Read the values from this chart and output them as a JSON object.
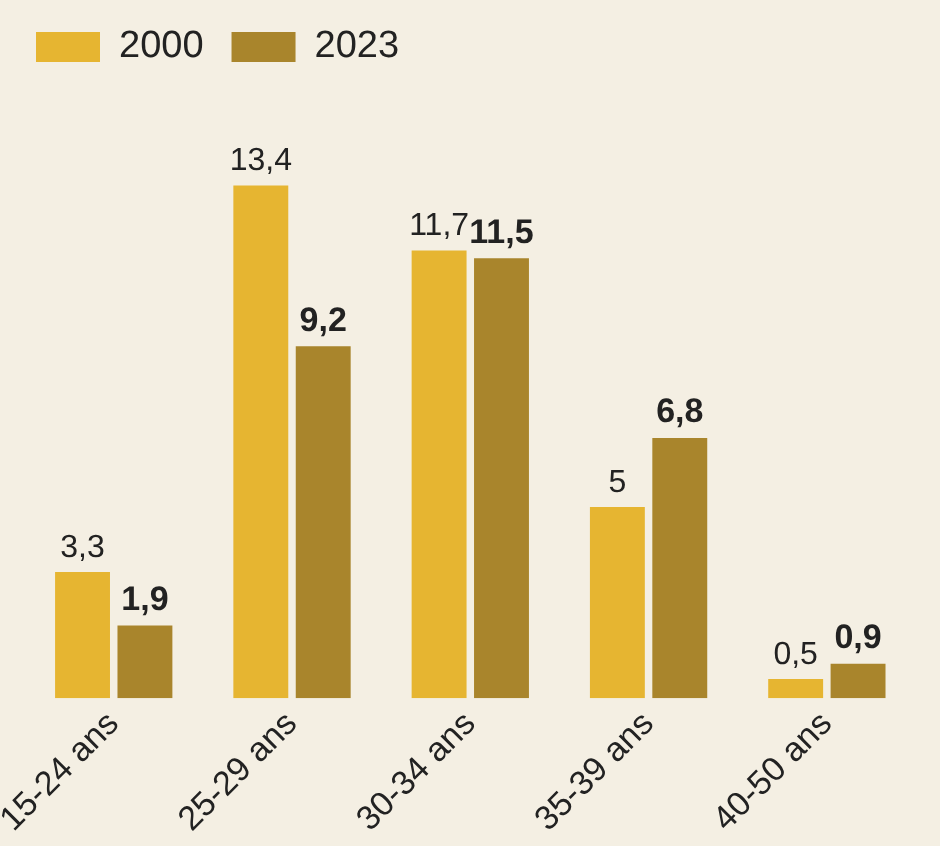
{
  "chart_data": {
    "type": "bar",
    "categories": [
      "15-24 ans",
      "25-29 ans",
      "30-34 ans",
      "35-39 ans",
      "40-50 ans"
    ],
    "series": [
      {
        "name": "2000",
        "color": "#e6b531",
        "values": [
          3.3,
          13.4,
          11.7,
          5,
          0.5
        ],
        "value_labels": [
          "3,3",
          "13,4",
          "11,7",
          "5",
          "0,5"
        ]
      },
      {
        "name": "2023",
        "color": "#a9852c",
        "values": [
          1.9,
          9.2,
          11.5,
          6.8,
          0.9
        ],
        "value_labels": [
          "1,9",
          "9,2",
          "11,5",
          "6,8",
          "0,9"
        ]
      }
    ],
    "legend": "top left",
    "grid": false
  }
}
